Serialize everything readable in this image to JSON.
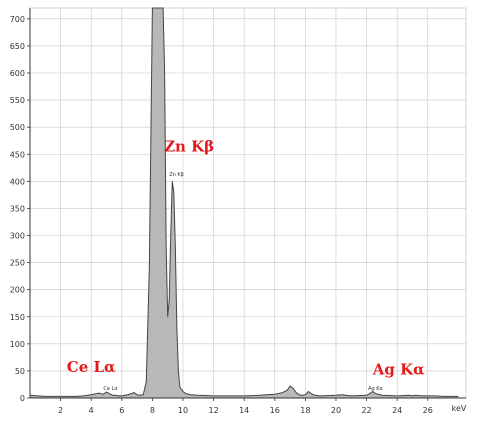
{
  "chart_data": {
    "type": "line",
    "xlabel": "keV",
    "ylabel": "",
    "xlim": [
      0,
      28.5
    ],
    "ylim": [
      0,
      720
    ],
    "xticks": [
      2,
      4,
      6,
      8,
      10,
      12,
      14,
      16,
      18,
      20,
      22,
      24,
      26
    ],
    "yticks": [
      0,
      50,
      100,
      150,
      200,
      250,
      300,
      350,
      400,
      450,
      500,
      550,
      600,
      650,
      700
    ],
    "grid": true,
    "series": [
      {
        "x": [
          0,
          0.5,
          1,
          1.5,
          2,
          2.5,
          3,
          3.5,
          4,
          4.5,
          4.8,
          5.0,
          5.2,
          5.4,
          5.6,
          5.8,
          6.0,
          6.2,
          6.4,
          6.6,
          6.8,
          7.0,
          7.2,
          7.4,
          7.6,
          7.8,
          8.0,
          8.2,
          8.4,
          8.6,
          8.7,
          8.8,
          8.9,
          9.0,
          9.1,
          9.2,
          9.3,
          9.4,
          9.5,
          9.6,
          9.7,
          9.8,
          10.0,
          10.2,
          10.5,
          11,
          12,
          13,
          14,
          15,
          16,
          16.5,
          16.8,
          17.0,
          17.2,
          17.4,
          17.6,
          17.8,
          18.0,
          18.2,
          18.4,
          18.6,
          19,
          20,
          20.4,
          21,
          22,
          22.2,
          22.4,
          22.6,
          23,
          24,
          24.8,
          25,
          25.2,
          25.6,
          26,
          26.5,
          27,
          27.5,
          28
        ],
        "y": [
          5,
          4,
          3,
          3,
          3,
          3,
          3,
          4,
          6,
          9,
          7,
          11,
          8,
          5,
          5,
          4,
          4,
          5,
          6,
          8,
          10,
          6,
          5,
          6,
          30,
          240,
          720,
          720,
          720,
          720,
          720,
          600,
          280,
          150,
          180,
          300,
          400,
          380,
          280,
          130,
          50,
          20,
          12,
          8,
          6,
          5,
          4,
          4,
          4,
          5,
          7,
          10,
          14,
          22,
          18,
          10,
          6,
          5,
          6,
          12,
          8,
          5,
          4,
          5,
          6,
          4,
          5,
          8,
          12,
          8,
          5,
          4,
          5,
          4,
          5,
          4,
          4,
          4,
          3,
          3,
          3
        ]
      }
    ],
    "annotations": [
      {
        "text": "Zn Kβ",
        "x": 10.4,
        "y": 455,
        "color": "#e31a1c",
        "kind": "big"
      },
      {
        "text": "Ce Lα",
        "x": 4.0,
        "y": 48,
        "color": "#e31a1c",
        "kind": "big"
      },
      {
        "text": "Ag Kα",
        "x": 24.1,
        "y": 43,
        "color": "#e31a1c",
        "kind": "big"
      },
      {
        "text": "Zn Kβ",
        "x": 9.1,
        "y": 410,
        "kind": "small"
      },
      {
        "text": "Ce Lα",
        "x": 4.8,
        "y": 15,
        "kind": "small"
      },
      {
        "text": "Ag Kα",
        "x": 22.1,
        "y": 15,
        "kind": "small"
      }
    ]
  },
  "colors": {
    "line": "#444444",
    "fill": "#b8b8b8",
    "grid": "#c8c8c8",
    "axis": "#333333"
  }
}
